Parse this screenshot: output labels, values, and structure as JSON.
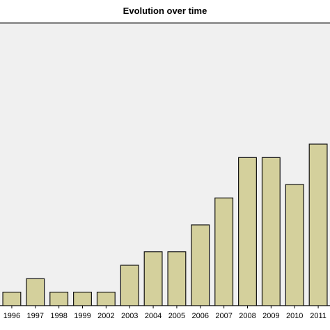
{
  "chart_data": {
    "type": "bar",
    "title": "Evolution over time",
    "xlabel": "",
    "ylabel": "",
    "categories": [
      "1996",
      "1997",
      "1998",
      "1999",
      "2002",
      "2003",
      "2004",
      "2005",
      "2006",
      "2007",
      "2008",
      "2009",
      "2010",
      "2011"
    ],
    "values": [
      1,
      2,
      1,
      1,
      1,
      3,
      4,
      4,
      6,
      8,
      11,
      11,
      9,
      12
    ],
    "ylim": [
      0,
      21
    ],
    "grid": false,
    "legend": "none",
    "colors": {
      "plot_background": "#f0f0f0",
      "bar_fill": "#d4d09c",
      "bar_stroke": "#111111"
    }
  }
}
